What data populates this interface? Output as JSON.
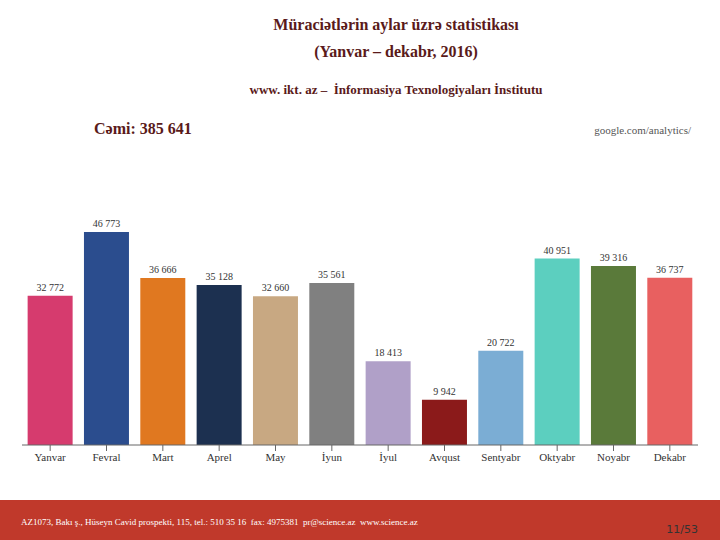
{
  "chart_data": {
    "type": "bar",
    "title": [
      "Müraciətlərin aylar üzrə statistikası",
      "(Yanvar – dekabr, 2016)"
    ],
    "subtitle": "www. ikt. az –  İnformasiya Texnologiyaları İnstitutu",
    "annotations": [
      "Cəmi: 385 641",
      "google.com/analytics/",
      "AZ1073, Bakı ş., Hüseyn Cavid prospekti, 115, tel.: 510 35 16  fax: 4975381  pr@science.az  www.science.az",
      "11/53"
    ],
    "categories": [
      "Yanvar",
      "Fevral",
      "Mart",
      "Aprel",
      "May",
      "İyun",
      "İyul",
      "Avqust",
      "Sentyabr",
      "Oktyabr",
      "Noyabr",
      "Dekabr"
    ],
    "values": [
      32772,
      46773,
      36666,
      35128,
      32660,
      35561,
      18413,
      9942,
      20722,
      40951,
      39316,
      36737
    ],
    "value_labels": [
      "32 772",
      "46 773",
      "36 666",
      "35 128",
      "32 660",
      "35 561",
      "18 413",
      "9 942",
      "20 722",
      "40 951",
      "39 316",
      "36 737"
    ],
    "colors": [
      "#d63b6e",
      "#2b4d8e",
      "#e07820",
      "#1c3050",
      "#c8a882",
      "#808080",
      "#b0a0c8",
      "#8b1a1a",
      "#7badd4",
      "#5ccfbf",
      "#5a7a3a",
      "#e86060"
    ],
    "ylim": [
      0,
      56000
    ],
    "data_labels": true,
    "tick_labels": "x",
    "grid": false
  }
}
